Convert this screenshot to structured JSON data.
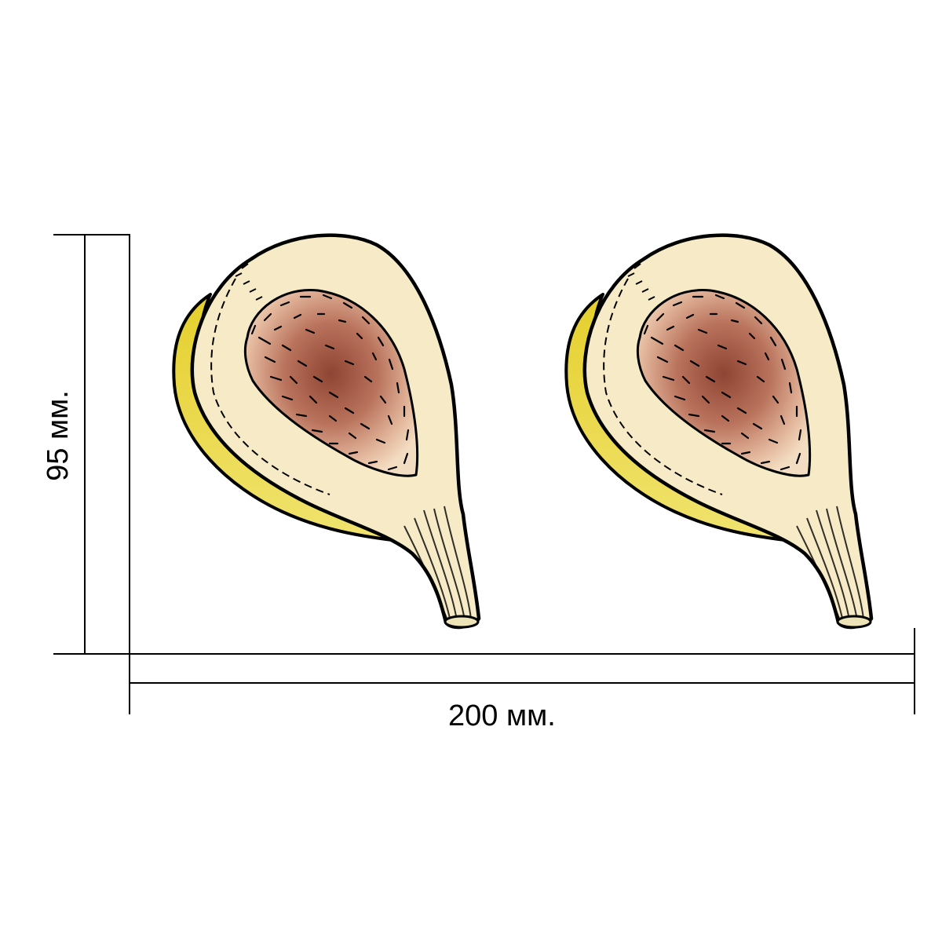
{
  "dimensions": {
    "width_label": "200 мм.",
    "height_label": "95 мм."
  },
  "illustration": {
    "subject": "fig-half",
    "count": 2
  },
  "colors": {
    "line": "#000000",
    "flesh": "#F6EBC6",
    "skin": "#E4CF2E",
    "skin_light": "#F2E46A",
    "pulp_outer": "#E8BFA6",
    "pulp_inner": "#9A4E3A",
    "stem": "#EDE3B6"
  }
}
